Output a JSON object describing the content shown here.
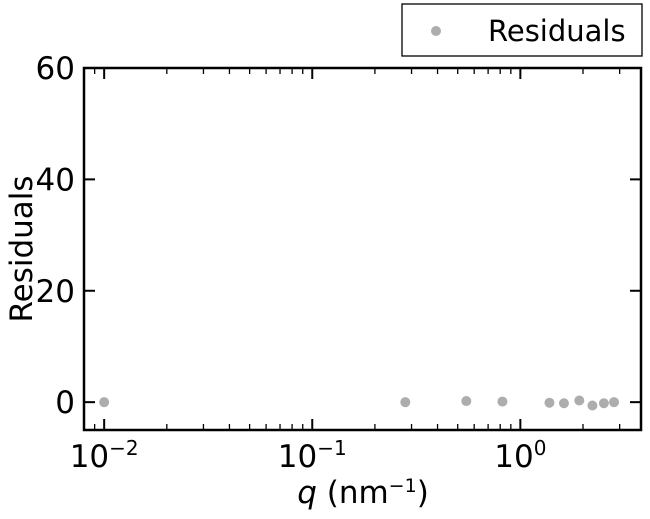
{
  "chart_data": {
    "type": "scatter",
    "title": "",
    "xlabel": {
      "var": "q",
      "unit_prefix": " (nm",
      "sup": "−1",
      "unit_suffix": ")"
    },
    "ylabel": "Residuals",
    "xscale": "log",
    "xlim": [
      0.008,
      3.8
    ],
    "ylim": [
      -5,
      60
    ],
    "x_ticks": [
      {
        "value": 0.01,
        "base": "10",
        "exp": "−2"
      },
      {
        "value": 0.1,
        "base": "10",
        "exp": "−1"
      },
      {
        "value": 1,
        "base": "10",
        "exp": "0"
      }
    ],
    "y_ticks": [
      {
        "value": 0,
        "label": "0"
      },
      {
        "value": 20,
        "label": "20"
      },
      {
        "value": 40,
        "label": "40"
      },
      {
        "value": 60,
        "label": "60"
      }
    ],
    "grid": false,
    "legend": {
      "position": "top-right-outside"
    },
    "series": [
      {
        "name": "Residuals",
        "color": "#999999",
        "points": [
          {
            "x": 0.01,
            "y": 0.0
          },
          {
            "x": 0.28,
            "y": 0.0
          },
          {
            "x": 0.55,
            "y": 0.2
          },
          {
            "x": 0.82,
            "y": 0.1
          },
          {
            "x": 1.38,
            "y": -0.1
          },
          {
            "x": 1.62,
            "y": -0.2
          },
          {
            "x": 1.92,
            "y": 0.3
          },
          {
            "x": 2.22,
            "y": -0.6
          },
          {
            "x": 2.52,
            "y": -0.2
          },
          {
            "x": 2.82,
            "y": 0.0
          }
        ]
      }
    ]
  }
}
